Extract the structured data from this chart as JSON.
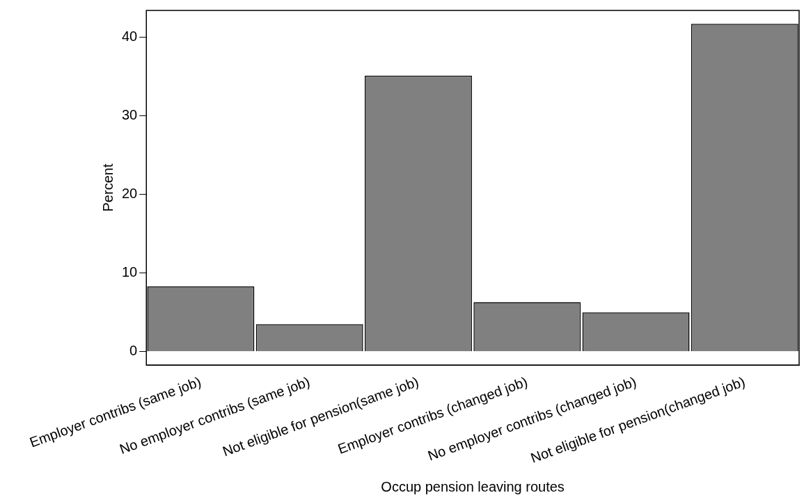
{
  "chart_data": {
    "type": "bar",
    "xlabel": "Occup pension leaving routes",
    "ylabel": "Percent",
    "categories": [
      "Employer contribs (same job)",
      "No employer contribs (same job)",
      "Not eligible for pension(same job)",
      "Employer contribs (changed job)",
      "No employer contribs (changed job)",
      "Not eligible for pension(changed job)"
    ],
    "values": [
      8.3,
      3.5,
      35.1,
      6.3,
      5.0,
      41.7
    ],
    "color": "#808080",
    "ylim": [
      -1.7,
      43.4
    ],
    "yticks": [
      0,
      10,
      20,
      30,
      40
    ],
    "grid": false,
    "legend": false
  }
}
